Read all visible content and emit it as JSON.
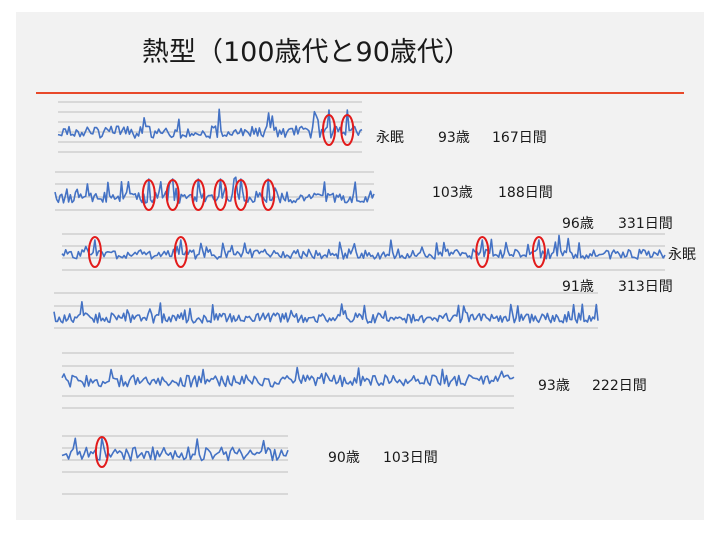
{
  "title": "熱型（100歳代と90歳代）",
  "colors": {
    "series": "#4472c4",
    "marker": "#e21b1b",
    "rule": "#e8492a",
    "grid": "#bfbfbf",
    "background": "#f2f2f2"
  },
  "labels": {
    "row1": {
      "status": "永眠",
      "age": "93歳",
      "days": "167日間"
    },
    "row2": {
      "age": "103歳",
      "days": "188日間"
    },
    "row3": {
      "age": "96歳",
      "days": "331日間",
      "status": "永眠"
    },
    "row4": {
      "age": "91歳",
      "days": "313日間"
    },
    "row5": {
      "age": "93歳",
      "days": "222日間"
    },
    "row6": {
      "age": "90歳",
      "days": "103日間"
    }
  },
  "chart_data": [
    {
      "type": "line",
      "age": "93歳",
      "days": 167,
      "status": "永眠",
      "circled_spikes_at_day": [
        148,
        158
      ]
    },
    {
      "type": "line",
      "age": "103歳",
      "days": 188,
      "circled_spikes_at_day": [
        55,
        69,
        84,
        97,
        109,
        125
      ]
    },
    {
      "type": "line",
      "age": "96歳",
      "days": 331,
      "status": "永眠",
      "circled_spikes_at_day": [
        18,
        65,
        230,
        261
      ]
    },
    {
      "type": "line",
      "age": "91歳",
      "days": 313,
      "circled_spikes_at_day": []
    },
    {
      "type": "line",
      "age": "93歳",
      "days": 222,
      "circled_spikes_at_day": []
    },
    {
      "type": "line",
      "age": "90歳",
      "days": 103,
      "circled_spikes_at_day": [
        18
      ]
    }
  ]
}
